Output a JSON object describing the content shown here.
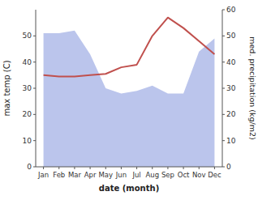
{
  "chart_data": {
    "type": "line",
    "xlabel": "date (month)",
    "ylabel": "max temp (C)",
    "y2label": "med. precipitation (kg/m2)",
    "categories": [
      "Jan",
      "Feb",
      "Mar",
      "Apr",
      "May",
      "Jun",
      "Jul",
      "Aug",
      "Sep",
      "Oct",
      "Nov",
      "Dec"
    ],
    "series": [
      {
        "type": "area",
        "color": "#bbc5ec",
        "values": [
          51,
          51,
          52,
          43,
          30,
          28,
          29,
          31,
          28,
          28,
          44,
          49
        ]
      },
      {
        "type": "line",
        "color": "#c0504d",
        "axis": "y2",
        "values": [
          35,
          34.5,
          34.5,
          35,
          35.5,
          38,
          39,
          50,
          57,
          53,
          48,
          43
        ]
      }
    ],
    "ylim": [
      0,
      60
    ],
    "yticks": [
      0,
      10,
      20,
      30,
      40,
      50
    ],
    "y2lim": [
      0,
      60
    ],
    "y2ticks": [
      0,
      10,
      20,
      30,
      40,
      50,
      60
    ]
  }
}
